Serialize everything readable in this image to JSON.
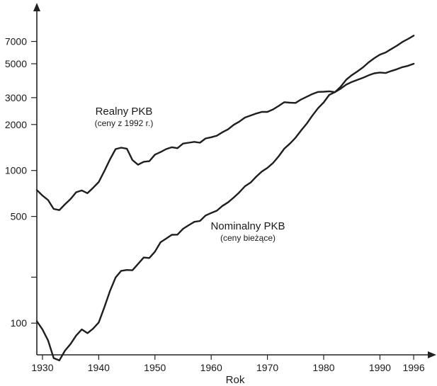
{
  "chart_data": {
    "type": "line",
    "xlabel": "Rok",
    "ylabel": "",
    "yscale": "log",
    "xlim": [
      1929,
      1997
    ],
    "ylim": [
      62,
      9000
    ],
    "x_ticks": [
      1930,
      1940,
      1950,
      1960,
      1970,
      1980,
      1990,
      1996
    ],
    "y_ticks": [
      100,
      200,
      500,
      1000,
      2000,
      3000,
      5000,
      7000
    ],
    "y_tick_labels": [
      "100",
      "",
      "500",
      "1000",
      "2000",
      "3000",
      "5000",
      "7000"
    ],
    "series": [
      {
        "name": "Realny PKB",
        "subname": "(ceny z 1992 r.)",
        "x": [
          1929,
          1930,
          1931,
          1932,
          1933,
          1934,
          1935,
          1936,
          1937,
          1938,
          1939,
          1940,
          1941,
          1942,
          1943,
          1944,
          1945,
          1946,
          1947,
          1948,
          1949,
          1950,
          1951,
          1952,
          1953,
          1954,
          1955,
          1956,
          1957,
          1958,
          1959,
          1960,
          1961,
          1962,
          1963,
          1964,
          1965,
          1966,
          1967,
          1968,
          1969,
          1970,
          1971,
          1972,
          1973,
          1974,
          1975,
          1976,
          1977,
          1978,
          1979,
          1980,
          1981,
          1982,
          1983,
          1984,
          1985,
          1986,
          1987,
          1988,
          1989,
          1990,
          1991,
          1992,
          1993,
          1994,
          1995,
          1996
        ],
        "values": [
          745,
          685,
          640,
          560,
          550,
          600,
          650,
          720,
          740,
          710,
          770,
          840,
          990,
          1180,
          1380,
          1410,
          1390,
          1170,
          1090,
          1140,
          1150,
          1270,
          1320,
          1380,
          1420,
          1400,
          1500,
          1520,
          1540,
          1520,
          1620,
          1650,
          1690,
          1780,
          1860,
          1990,
          2090,
          2220,
          2290,
          2360,
          2420,
          2420,
          2510,
          2650,
          2800,
          2780,
          2770,
          2920,
          3040,
          3170,
          3270,
          3280,
          3300,
          3260,
          3430,
          3650,
          3800,
          3920,
          4050,
          4200,
          4330,
          4380,
          4350,
          4480,
          4600,
          4750,
          4850,
          5000
        ]
      },
      {
        "name": "Nominalny PKB",
        "subname": "(ceny bieżące)",
        "x": [
          1929,
          1930,
          1931,
          1932,
          1933,
          1934,
          1935,
          1936,
          1937,
          1938,
          1939,
          1940,
          1941,
          1942,
          1943,
          1944,
          1945,
          1946,
          1947,
          1948,
          1949,
          1950,
          1951,
          1952,
          1953,
          1954,
          1955,
          1956,
          1957,
          1958,
          1959,
          1960,
          1961,
          1962,
          1963,
          1964,
          1965,
          1966,
          1967,
          1968,
          1969,
          1970,
          1971,
          1972,
          1973,
          1974,
          1975,
          1976,
          1977,
          1978,
          1979,
          1980,
          1981,
          1982,
          1983,
          1984,
          1985,
          1986,
          1987,
          1988,
          1989,
          1990,
          1991,
          1992,
          1993,
          1994,
          1995,
          1996
        ],
        "values": [
          103,
          91,
          77,
          59,
          57,
          66,
          73,
          83,
          91,
          86,
          92,
          101,
          127,
          162,
          199,
          220,
          223,
          222,
          244,
          269,
          267,
          294,
          339,
          358,
          379,
          380,
          415,
          438,
          461,
          467,
          507,
          527,
          545,
          586,
          618,
          664,
          719,
          788,
          833,
          910,
          983,
          1040,
          1120,
          1240,
          1390,
          1500,
          1640,
          1830,
          2030,
          2290,
          2560,
          2790,
          3130,
          3260,
          3530,
          3930,
          4210,
          4450,
          4740,
          5110,
          5440,
          5740,
          5930,
          6240,
          6560,
          6950,
          7270,
          7640
        ]
      }
    ]
  }
}
